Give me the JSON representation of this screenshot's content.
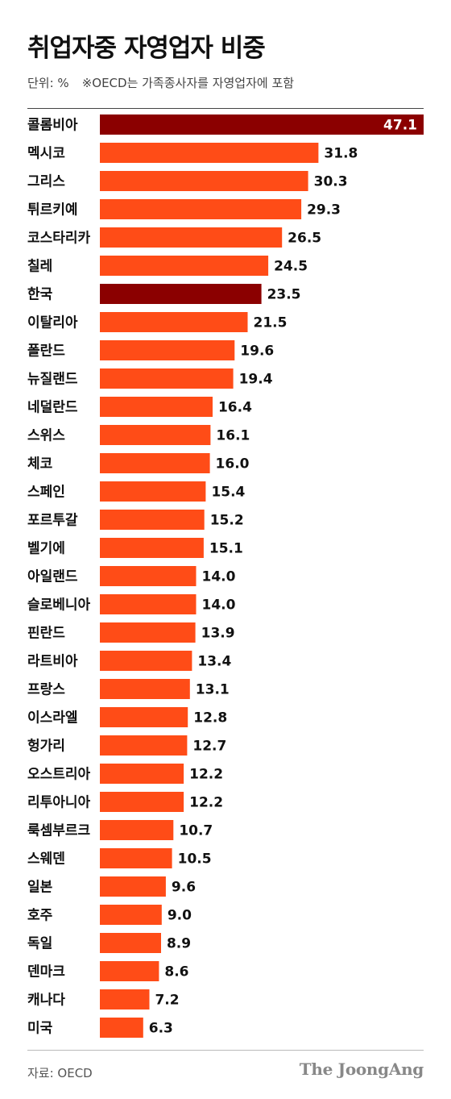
{
  "title": "취업자중 자영업자 비중",
  "note": {
    "unit": "단위: %",
    "remark": "※OECD는 가족종사자를 자영업자에 포함"
  },
  "source": "자료: OECD",
  "brand": "The JoongAng",
  "colors": {
    "bar": "#ff4c17",
    "highlight": "#8b0000"
  },
  "chart_data": {
    "type": "bar",
    "orientation": "horizontal",
    "title": "취업자중 자영업자 비중",
    "unit": "%",
    "categories": [
      "콜롬비아",
      "멕시코",
      "그리스",
      "튀르키예",
      "코스타리카",
      "칠레",
      "한국",
      "이탈리아",
      "폴란드",
      "뉴질랜드",
      "네덜란드",
      "스위스",
      "체코",
      "스페인",
      "포르투갈",
      "벨기에",
      "아일랜드",
      "슬로베니아",
      "핀란드",
      "라트비아",
      "프랑스",
      "이스라엘",
      "헝가리",
      "오스트리아",
      "리투아니아",
      "룩셈부르크",
      "스웨덴",
      "일본",
      "호주",
      "독일",
      "덴마크",
      "캐나다",
      "미국"
    ],
    "values": [
      47.1,
      31.8,
      30.3,
      29.3,
      26.5,
      24.5,
      23.5,
      21.5,
      19.6,
      19.4,
      16.4,
      16.1,
      16.0,
      15.4,
      15.2,
      15.1,
      14.0,
      14.0,
      13.9,
      13.4,
      13.1,
      12.8,
      12.7,
      12.2,
      12.2,
      10.7,
      10.5,
      9.6,
      9.0,
      8.9,
      8.6,
      7.2,
      6.3
    ],
    "labels": [
      "47.1",
      "31.8",
      "30.3",
      "29.3",
      "26.5",
      "24.5",
      "23.5",
      "21.5",
      "19.6",
      "19.4",
      "16.4",
      "16.1",
      "16.0",
      "15.4",
      "15.2",
      "15.1",
      "14.0",
      "14.0",
      "13.9",
      "13.4",
      "13.1",
      "12.8",
      "12.7",
      "12.2",
      "12.2",
      "10.7",
      "10.5",
      "9.6",
      "9.0",
      "8.9",
      "8.6",
      "7.2",
      "6.3"
    ],
    "highlight": [
      "콜롬비아",
      "한국"
    ],
    "xlim": [
      0,
      47.1
    ],
    "grid": false,
    "legend": "none"
  }
}
